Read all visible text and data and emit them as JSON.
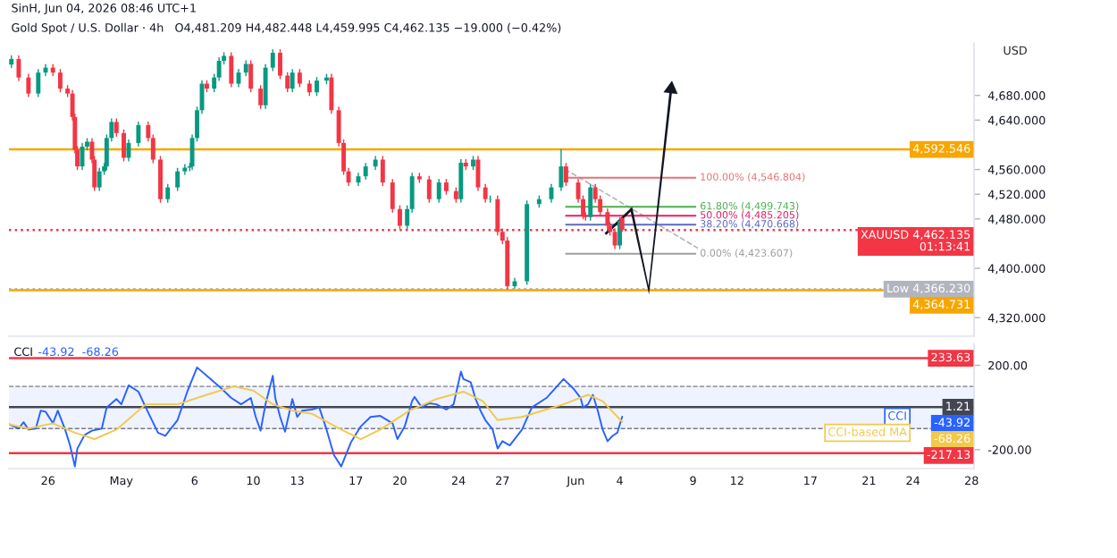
{
  "chart_data": [
    {
      "type": "candlestick",
      "title": "Gold Spot / U.S. Dollar · 4h",
      "subtitle": "O4,481.209 H4,482.448 L4,459.995 C4,462.135 −19.000 (−0.42%)",
      "ylabel": "USD",
      "annotations": [
        "SinH, Jun 04, 2026 08:46 UTC+1"
      ],
      "tick_labels": "y",
      "xlim": [
        "2026-04-23T08:00",
        "2026-06-28T04:00"
      ],
      "ylim": [
        4290,
        4765
      ],
      "yticks": [
        {
          "value": 4320,
          "label": "4,320.000"
        },
        {
          "value": 4400,
          "label": "4,400.000"
        },
        {
          "value": 4480,
          "label": "4,480.000"
        },
        {
          "value": 4520,
          "label": "4,520.000"
        },
        {
          "value": 4560,
          "label": "4,560.000"
        },
        {
          "value": 4640,
          "label": "4,640.000"
        },
        {
          "value": 4680,
          "label": "4,680.000"
        }
      ],
      "x": [
        "2026-04-23T12:00",
        "2026-04-24T00:00",
        "2026-04-24T16:00",
        "2026-04-25T08:00",
        "2026-04-25T20:00",
        "2026-04-26T08:00",
        "2026-04-26T20:00",
        "2026-04-27T08:00",
        "2026-04-27T16:00",
        "2026-04-27T20:00",
        "2026-04-28T00:00",
        "2026-04-28T08:00",
        "2026-04-28T16:00",
        "2026-04-29T00:00",
        "2026-04-29T04:00",
        "2026-04-29T12:00",
        "2026-04-29T20:00",
        "2026-04-30T00:00",
        "2026-04-30T08:00",
        "2026-04-30T16:00",
        "2026-05-01T04:00",
        "2026-05-01T12:00",
        "2026-05-02T04:00",
        "2026-05-02T20:00",
        "2026-05-03T04:00",
        "2026-05-03T16:00",
        "2026-05-04T04:00",
        "2026-05-04T20:00",
        "2026-05-05T08:00",
        "2026-05-05T16:00",
        "2026-05-05T20:00",
        "2026-05-06T04:00",
        "2026-05-06T12:00",
        "2026-05-06T20:00",
        "2026-05-07T08:00",
        "2026-05-07T16:00",
        "2026-05-08T00:00",
        "2026-05-08T12:00",
        "2026-05-09T00:00",
        "2026-05-09T12:00",
        "2026-05-09T20:00",
        "2026-05-10T12:00",
        "2026-05-10T20:00",
        "2026-05-11T08:00",
        "2026-05-11T20:00",
        "2026-05-12T08:00",
        "2026-05-12T16:00",
        "2026-05-13T04:00",
        "2026-05-13T20:00",
        "2026-05-14T08:00",
        "2026-05-15T00:00",
        "2026-05-15T08:00",
        "2026-05-15T20:00",
        "2026-05-16T04:00",
        "2026-05-16T12:00",
        "2026-05-17T04:00",
        "2026-05-17T16:00",
        "2026-05-18T08:00",
        "2026-05-18T20:00",
        "2026-05-19T12:00",
        "2026-05-20T00:00",
        "2026-05-20T12:00",
        "2026-05-20T20:00",
        "2026-05-21T08:00",
        "2026-05-22T00:00",
        "2026-05-22T16:00",
        "2026-05-23T04:00",
        "2026-05-23T20:00",
        "2026-05-24T04:00",
        "2026-05-24T12:00",
        "2026-05-25T00:00",
        "2026-05-25T08:00",
        "2026-05-25T20:00",
        "2026-05-26T04:00",
        "2026-05-26T16:00",
        "2026-05-27T00:00",
        "2026-05-27T08:00",
        "2026-05-27T20:00",
        "2026-05-28T16:00",
        "2026-05-29T12:00",
        "2026-05-30T08:00",
        "2026-05-31T00:00",
        "2026-05-31T08:00",
        "2026-06-01T04:00",
        "2026-06-01T12:00",
        "2026-06-01T16:00",
        "2026-06-02T00:00",
        "2026-06-02T08:00",
        "2026-06-02T16:00",
        "2026-06-03T04:00",
        "2026-06-03T08:00",
        "2026-06-03T16:00",
        "2026-06-04T00:00",
        "2026-06-04T04:00"
      ],
      "ohlc": [
        [
          4730,
          4744,
          4725,
          4739
        ],
        [
          4739,
          4744,
          4704,
          4709
        ],
        [
          4709,
          4714,
          4678,
          4683
        ],
        [
          4683,
          4722,
          4678,
          4717
        ],
        [
          4717,
          4730,
          4712,
          4725
        ],
        [
          4725,
          4730,
          4712,
          4717
        ],
        [
          4717,
          4722,
          4686,
          4691
        ],
        [
          4691,
          4696,
          4678,
          4683
        ],
        [
          4683,
          4688,
          4640,
          4645
        ],
        [
          4645,
          4650,
          4587,
          4592
        ],
        [
          4592,
          4597,
          4560,
          4565
        ],
        [
          4565,
          4602,
          4560,
          4597
        ],
        [
          4597,
          4610,
          4592,
          4605
        ],
        [
          4605,
          4610,
          4571,
          4576
        ],
        [
          4576,
          4581,
          4526,
          4531
        ],
        [
          4531,
          4562,
          4526,
          4557
        ],
        [
          4557,
          4570,
          4552,
          4565
        ],
        [
          4565,
          4616,
          4560,
          4611
        ],
        [
          4611,
          4642,
          4606,
          4637
        ],
        [
          4637,
          4642,
          4614,
          4619
        ],
        [
          4619,
          4624,
          4574,
          4579
        ],
        [
          4579,
          4608,
          4574,
          4603
        ],
        [
          4603,
          4637,
          4598,
          4632
        ],
        [
          4632,
          4637,
          4606,
          4611
        ],
        [
          4611,
          4616,
          4571,
          4576
        ],
        [
          4576,
          4581,
          4507,
          4512
        ],
        [
          4512,
          4536,
          4507,
          4531
        ],
        [
          4531,
          4562,
          4526,
          4557
        ],
        [
          4557,
          4568,
          4552,
          4563
        ],
        [
          4563,
          4570,
          4558,
          4565
        ],
        [
          4565,
          4616,
          4560,
          4611
        ],
        [
          4611,
          4661,
          4606,
          4656
        ],
        [
          4656,
          4704,
          4651,
          4699
        ],
        [
          4699,
          4704,
          4686,
          4691
        ],
        [
          4691,
          4714,
          4686,
          4709
        ],
        [
          4709,
          4741,
          4704,
          4736
        ],
        [
          4736,
          4749,
          4731,
          4744
        ],
        [
          4744,
          4749,
          4694,
          4699
        ],
        [
          4699,
          4722,
          4694,
          4717
        ],
        [
          4717,
          4736,
          4712,
          4731
        ],
        [
          4731,
          4736,
          4686,
          4691
        ],
        [
          4691,
          4696,
          4659,
          4664
        ],
        [
          4664,
          4730,
          4659,
          4725
        ],
        [
          4725,
          4754,
          4720,
          4749
        ],
        [
          4749,
          4754,
          4707,
          4712
        ],
        [
          4712,
          4717,
          4686,
          4691
        ],
        [
          4691,
          4722,
          4686,
          4717
        ],
        [
          4717,
          4722,
          4694,
          4699
        ],
        [
          4699,
          4704,
          4680,
          4685
        ],
        [
          4685,
          4709,
          4680,
          4704
        ],
        [
          4704,
          4714,
          4699,
          4709
        ],
        [
          4709,
          4714,
          4651,
          4656
        ],
        [
          4656,
          4661,
          4598,
          4603
        ],
        [
          4603,
          4608,
          4552,
          4557
        ],
        [
          4557,
          4562,
          4534,
          4539
        ],
        [
          4539,
          4554,
          4534,
          4549
        ],
        [
          4549,
          4570,
          4544,
          4565
        ],
        [
          4565,
          4581,
          4560,
          4576
        ],
        [
          4576,
          4581,
          4534,
          4539
        ],
        [
          4539,
          4544,
          4491,
          4496
        ],
        [
          4496,
          4501,
          4464,
          4469
        ],
        [
          4469,
          4501,
          4464,
          4496
        ],
        [
          4496,
          4554,
          4491,
          4549
        ],
        [
          4549,
          4554,
          4539,
          4544
        ],
        [
          4544,
          4549,
          4507,
          4512
        ],
        [
          4512,
          4544,
          4507,
          4539
        ],
        [
          4539,
          4544,
          4520,
          4525
        ],
        [
          4525,
          4530,
          4507,
          4512
        ],
        [
          4512,
          4576,
          4507,
          4571
        ],
        [
          4571,
          4576,
          4560,
          4565
        ],
        [
          4565,
          4581,
          4560,
          4576
        ],
        [
          4576,
          4581,
          4526,
          4531
        ],
        [
          4531,
          4536,
          4507,
          4512
        ],
        [
          4512,
          4517,
          4507,
          4512
        ],
        [
          4512,
          4517,
          4454,
          4459
        ],
        [
          4459,
          4464,
          4440,
          4445
        ],
        [
          4445,
          4450,
          4366.23,
          4371
        ],
        [
          4371,
          4384,
          4368,
          4379
        ],
        [
          4379,
          4509,
          4374,
          4504
        ],
        [
          4504,
          4517,
          4499,
          4512
        ],
        [
          4512,
          4536,
          4507,
          4531
        ],
        [
          4531,
          4592,
          4526,
          4565
        ],
        [
          4565,
          4570,
          4534,
          4539
        ],
        [
          4539,
          4544,
          4507,
          4512
        ],
        [
          4512,
          4517,
          4480,
          4485
        ],
        [
          4485,
          4490,
          4478,
          4483
        ],
        [
          4483,
          4536,
          4478,
          4531
        ],
        [
          4531,
          4536,
          4507,
          4512
        ],
        [
          4512,
          4517,
          4486,
          4491
        ],
        [
          4491,
          4496,
          4464,
          4469
        ],
        [
          4469,
          4474,
          4454,
          4459
        ],
        [
          4459,
          4464,
          4432,
          4437
        ],
        [
          4437,
          4482,
          4432,
          4477
        ],
        [
          4481.209,
          4482.448,
          4459.995,
          4462.135
        ]
      ],
      "series": [
        {
          "type": "line",
          "name": "100.00% (4,546.804)",
          "color": "#e57373",
          "x": [
            "2026-05-31T08:00",
            "2026-06-09T04:00"
          ],
          "values": [
            4546.804,
            4546.804
          ]
        },
        {
          "type": "line",
          "name": "61.80% (4,499.743)",
          "color": "#4caf50",
          "x": [
            "2026-05-31T08:00",
            "2026-06-09T04:00"
          ],
          "values": [
            4499.743,
            4499.743
          ]
        },
        {
          "type": "line",
          "name": "50.00% (4,485.205)",
          "color": "#e91e63",
          "x": [
            "2026-05-31T08:00",
            "2026-06-09T04:00"
          ],
          "values": [
            4485.205,
            4485.205
          ]
        },
        {
          "type": "line",
          "name": "38.20% (4,470.668)",
          "color": "#5c6bc0",
          "x": [
            "2026-05-31T08:00",
            "2026-06-09T04:00"
          ],
          "values": [
            4470.668,
            4470.668
          ]
        },
        {
          "type": "line",
          "name": "0.00% (4,423.607)",
          "color": "#9e9e9e",
          "x": [
            "2026-05-31T08:00",
            "2026-06-09T04:00"
          ],
          "values": [
            4423.607,
            4423.607
          ]
        }
      ],
      "ref_lines": [
        {
          "axis": "y",
          "value": 4592.546,
          "label": "4,592.546",
          "color": "#f7a600"
        },
        {
          "axis": "y",
          "value": 4462.135,
          "label": "XAUUSD 4,462.135\n01:13:41",
          "color": "#f23645",
          "line_style": "dotted"
        },
        {
          "axis": "y",
          "value": 4366.23,
          "label": "Low 4,366.230",
          "color": "#b2b5be",
          "line_style": "dotted"
        },
        {
          "axis": "y",
          "value": 4364.731,
          "label": "4,364.731",
          "color": "#f7a600"
        }
      ]
    },
    {
      "type": "line",
      "title": "CCI",
      "legend": "right",
      "annotations": [
        "-43.92  -68.26",
        "-43.92",
        "-68.26"
      ],
      "xlim": [
        "2026-04-23T08:00",
        "2026-06-28T04:00"
      ],
      "ylim": [
        -290,
        304
      ],
      "xticks": [
        {
          "value": "2026-04-26",
          "label": "26"
        },
        {
          "value": "2026-05-01",
          "label": "May"
        },
        {
          "value": "2026-05-06",
          "label": "6"
        },
        {
          "value": "2026-05-10",
          "label": "10"
        },
        {
          "value": "2026-05-13",
          "label": "13"
        },
        {
          "value": "2026-05-17",
          "label": "17"
        },
        {
          "value": "2026-05-20",
          "label": "20"
        },
        {
          "value": "2026-05-24",
          "label": "24"
        },
        {
          "value": "2026-05-27",
          "label": "27"
        },
        {
          "value": "2026-06-01",
          "label": "Jun"
        },
        {
          "value": "2026-06-04",
          "label": "4"
        },
        {
          "value": "2026-06-09",
          "label": "9"
        },
        {
          "value": "2026-06-12",
          "label": "12"
        },
        {
          "value": "2026-06-17",
          "label": "17"
        },
        {
          "value": "2026-06-21",
          "label": "21"
        },
        {
          "value": "2026-06-24",
          "label": "24"
        },
        {
          "value": "2026-06-28",
          "label": "28"
        }
      ],
      "yticks": [
        {
          "value": 200,
          "label": "200.00"
        },
        {
          "value": -200,
          "label": "-200.00"
        }
      ],
      "series": [
        {
          "name": "CCI",
          "color": "#2962ff",
          "x": [
            "2026-04-23T08:00",
            "2026-04-24T00:00",
            "2026-04-24T08:00",
            "2026-04-24T16:00",
            "2026-04-25T04:00",
            "2026-04-25T12:00",
            "2026-04-25T20:00",
            "2026-04-26T08:00",
            "2026-04-26T16:00",
            "2026-04-27T04:00",
            "2026-04-27T12:00",
            "2026-04-27T20:00",
            "2026-04-28T00:00",
            "2026-04-28T12:00",
            "2026-04-29T00:00",
            "2026-04-29T16:00",
            "2026-04-30T00:00",
            "2026-04-30T16:00",
            "2026-05-01T00:00",
            "2026-05-01T12:00",
            "2026-05-02T04:00",
            "2026-05-02T16:00",
            "2026-05-03T12:00",
            "2026-05-04T00:00",
            "2026-05-04T20:00",
            "2026-05-05T12:00",
            "2026-05-06T04:00",
            "2026-05-06T20:00",
            "2026-05-07T20:00",
            "2026-05-08T12:00",
            "2026-05-09T04:00",
            "2026-05-09T20:00",
            "2026-05-10T04:00",
            "2026-05-10T12:00",
            "2026-05-10T20:00",
            "2026-05-11T08:00",
            "2026-05-11T12:00",
            "2026-05-11T20:00",
            "2026-05-12T04:00",
            "2026-05-12T16:00",
            "2026-05-13T00:00",
            "2026-05-13T08:00",
            "2026-05-14T00:00",
            "2026-05-14T12:00",
            "2026-05-15T00:00",
            "2026-05-15T12:00",
            "2026-05-16T00:00",
            "2026-05-16T16:00",
            "2026-05-17T08:00",
            "2026-05-18T00:00",
            "2026-05-18T16:00",
            "2026-05-19T12:00",
            "2026-05-19T20:00",
            "2026-05-20T08:00",
            "2026-05-20T20:00",
            "2026-05-21T00:00",
            "2026-05-21T12:00",
            "2026-05-22T00:00",
            "2026-05-22T12:00",
            "2026-05-23T04:00",
            "2026-05-23T16:00",
            "2026-05-24T04:00",
            "2026-05-24T08:00",
            "2026-05-24T20:00",
            "2026-05-25T04:00",
            "2026-05-25T12:00",
            "2026-05-25T20:00",
            "2026-05-26T08:00",
            "2026-05-26T16:00",
            "2026-05-27T00:00",
            "2026-05-27T12:00",
            "2026-05-28T08:00",
            "2026-05-29T00:00",
            "2026-05-30T00:00",
            "2026-05-31T04:00",
            "2026-05-31T20:00",
            "2026-06-01T08:00",
            "2026-06-01T12:00",
            "2026-06-01T20:00",
            "2026-06-02T04:00",
            "2026-06-02T12:00",
            "2026-06-02T20:00",
            "2026-06-03T04:00",
            "2026-06-03T12:00",
            "2026-06-03T20:00",
            "2026-06-04T04:00"
          ],
          "values": [
            -80,
            -100,
            -70,
            -105,
            -100,
            -15,
            -20,
            -75,
            -15,
            -105,
            -180,
            -280,
            -195,
            -130,
            -110,
            -100,
            0,
            40,
            15,
            105,
            75,
            0,
            -120,
            -135,
            -60,
            75,
            190,
            150,
            90,
            45,
            15,
            45,
            -45,
            -110,
            15,
            150,
            45,
            -45,
            -115,
            40,
            -45,
            -15,
            -10,
            0,
            -105,
            -225,
            -280,
            -165,
            -90,
            -45,
            -40,
            -75,
            -150,
            -90,
            30,
            50,
            0,
            20,
            15,
            -10,
            15,
            170,
            135,
            120,
            40,
            -15,
            -60,
            -105,
            -195,
            -160,
            -180,
            -105,
            0,
            45,
            135,
            90,
            45,
            0,
            15,
            60,
            -15,
            -105,
            -160,
            -135,
            -120,
            -43.92
          ]
        },
        {
          "name": "CCI-based MA",
          "color": "#f2c94c",
          "x": [
            "2026-04-23T08:00",
            "2026-04-24T16:00",
            "2026-04-26T08:00",
            "2026-04-27T20:00",
            "2026-04-29T04:00",
            "2026-04-30T16:00",
            "2026-05-02T16:00",
            "2026-05-04T20:00",
            "2026-05-06T20:00",
            "2026-05-08T16:00",
            "2026-05-10T00:00",
            "2026-05-11T08:00",
            "2026-05-12T16:00",
            "2026-05-14T00:00",
            "2026-05-16T00:00",
            "2026-05-17T08:00",
            "2026-05-18T16:00",
            "2026-05-20T16:00",
            "2026-05-22T12:00",
            "2026-05-24T08:00",
            "2026-05-25T16:00",
            "2026-05-26T16:00",
            "2026-05-28T08:00",
            "2026-05-31T04:00",
            "2026-06-01T20:00",
            "2026-06-02T20:00",
            "2026-06-04T04:00"
          ],
          "values": [
            -80,
            -100,
            -75,
            -120,
            -150,
            -105,
            15,
            15,
            60,
            100,
            80,
            15,
            -15,
            -30,
            -105,
            -150,
            -105,
            -15,
            40,
            75,
            30,
            -60,
            -45,
            15,
            60,
            30,
            -68.26
          ]
        }
      ],
      "bands": [
        {
          "axis": "y",
          "from": -100,
          "to": 100,
          "color": "#2962ff"
        }
      ],
      "ref_lines": [
        {
          "axis": "y",
          "value": 233.63,
          "label": "233.63",
          "color": "#f23645"
        },
        {
          "axis": "y",
          "value": 1.21,
          "label": "1.21",
          "color": "#434651"
        },
        {
          "axis": "y",
          "value": 100,
          "color": "#787b86",
          "line_style": "dashed"
        },
        {
          "axis": "y",
          "value": -100,
          "color": "#787b86",
          "line_style": "dashed"
        },
        {
          "axis": "y",
          "value": -217.13,
          "label": "-217.13",
          "color": "#f23645"
        }
      ]
    }
  ]
}
